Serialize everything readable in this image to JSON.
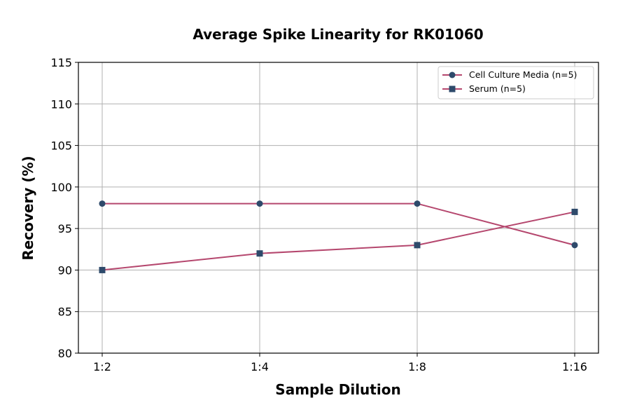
{
  "chart_data": {
    "type": "line",
    "title": "Average Spike Linearity for RK01060",
    "xlabel": "Sample Dilution",
    "ylabel": "Recovery (%)",
    "categories": [
      "1:2",
      "1:4",
      "1:8",
      "1:16"
    ],
    "ylim": [
      80,
      115
    ],
    "yticks": [
      80,
      85,
      90,
      95,
      100,
      105,
      110,
      115
    ],
    "grid": true,
    "legend_position": "top-right",
    "series": [
      {
        "name": "Cell Culture Media (n=5)",
        "marker": "circle",
        "values": [
          98,
          98,
          98,
          93
        ]
      },
      {
        "name": "Serum (n=5)",
        "marker": "square",
        "values": [
          90,
          92,
          93,
          97
        ]
      }
    ],
    "colors": {
      "line": "#b5476e",
      "marker": "#2e4a6b",
      "grid": "#b0b0b0"
    }
  }
}
